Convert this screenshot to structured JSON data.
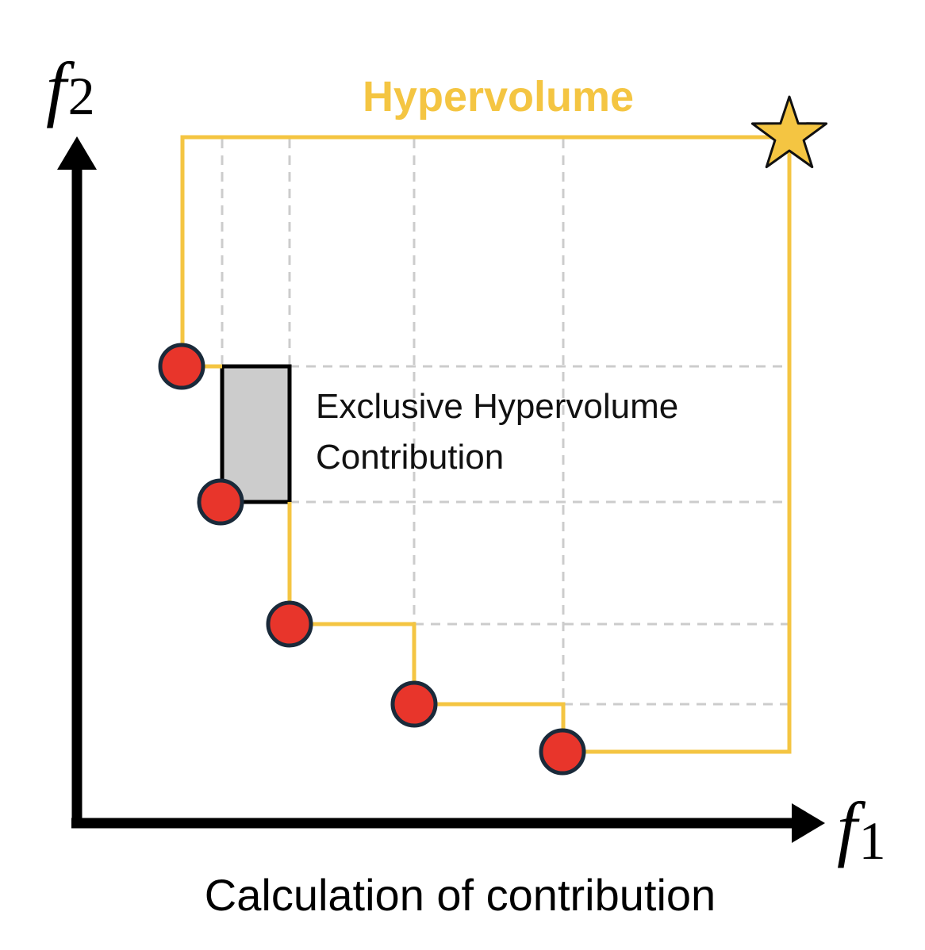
{
  "title": "Hypervolume",
  "annotation": {
    "line1": "Exclusive Hypervolume",
    "line2": "Contribution"
  },
  "caption": "Calculation of contribution",
  "axes": {
    "x": {
      "letter": "f",
      "subscript": "1"
    },
    "y": {
      "letter": "f",
      "subscript": "2"
    }
  },
  "colors": {
    "hypervolume": "#F4C542",
    "point_fill": "#E8352B",
    "point_stroke": "#1A2A3A",
    "contribution_fill": "#CCCCCC",
    "grid": "#CCCCCC",
    "axis": "#000000"
  },
  "reference_point": {
    "icon": "star-icon"
  }
}
